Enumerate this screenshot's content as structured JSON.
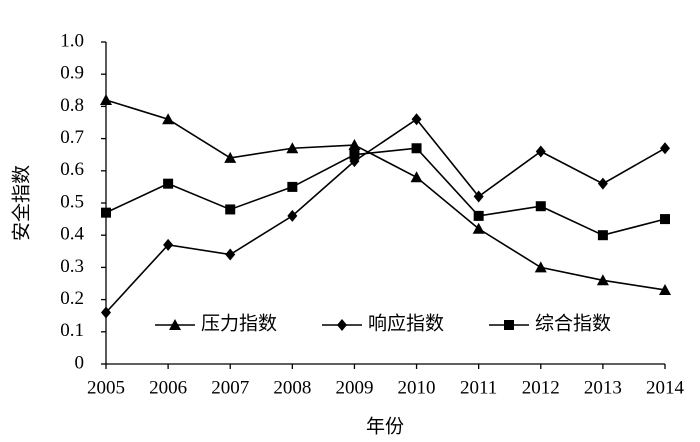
{
  "chart_data": {
    "type": "line",
    "x_label": "年份",
    "y_label": "安全指数",
    "categories": [
      "2005",
      "2006",
      "2007",
      "2008",
      "2009",
      "2010",
      "2011",
      "2012",
      "2013",
      "2014"
    ],
    "series": [
      {
        "name": "压力指数",
        "color": "#000000",
        "marker": "triangle",
        "values": [
          0.82,
          0.76,
          0.64,
          0.67,
          0.68,
          0.58,
          0.42,
          0.3,
          0.26,
          0.23
        ]
      },
      {
        "name": "响应指数",
        "color": "#000000",
        "marker": "diamond",
        "values": [
          0.16,
          0.37,
          0.34,
          0.46,
          0.63,
          0.76,
          0.52,
          0.66,
          0.56,
          0.67
        ]
      },
      {
        "name": "综合指数",
        "color": "#000000",
        "marker": "square",
        "values": [
          0.47,
          0.56,
          0.48,
          0.55,
          0.65,
          0.67,
          0.46,
          0.49,
          0.4,
          0.45
        ]
      }
    ],
    "ylim": [
      0,
      1
    ],
    "yticks": [
      0,
      0.1,
      0.2,
      0.3,
      0.4,
      0.5,
      0.6,
      0.7,
      0.8,
      0.9,
      {
        "value": 1,
        "label": "1.0"
      }
    ],
    "grid": false,
    "legend": "bottom"
  }
}
